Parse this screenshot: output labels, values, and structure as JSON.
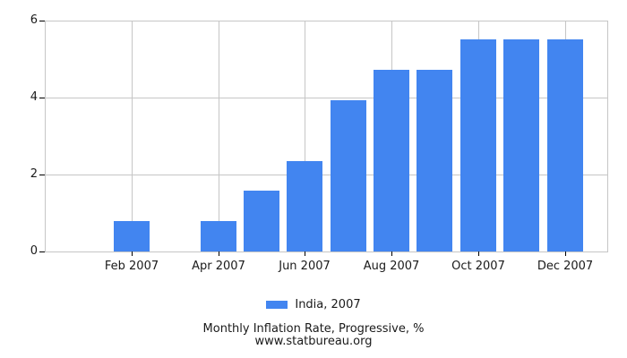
{
  "chart_data": {
    "type": "bar",
    "title": "Monthly Inflation Rate, Progressive, %",
    "subtitle": "www.statbureau.org",
    "legend": [
      {
        "label": "India, 2007",
        "color": "#4285f0"
      }
    ],
    "legend_position": "bottom",
    "categories": [
      "Jan 2007",
      "Feb 2007",
      "Mar 2007",
      "Apr 2007",
      "May 2007",
      "Jun 2007",
      "Jul 2007",
      "Aug 2007",
      "Sep 2007",
      "Oct 2007",
      "Nov 2007",
      "Dec 2007"
    ],
    "series": [
      {
        "name": "India, 2007",
        "values": [
          0,
          0.78,
          0,
          0.78,
          1.57,
          2.36,
          3.94,
          4.73,
          4.73,
          5.51,
          5.51,
          5.51
        ]
      }
    ],
    "x_tick_labels": [
      "Feb 2007",
      "Apr 2007",
      "Jun 2007",
      "Aug 2007",
      "Oct 2007",
      "Dec 2007"
    ],
    "y_ticks": [
      0,
      2,
      4,
      6
    ],
    "ylim": [
      0,
      6
    ],
    "grid": true,
    "colors": {
      "bar": "#4285f0",
      "grid": "#c6c6c6",
      "axis": "#c6c6c6",
      "tick_mark": "#000000",
      "text": "#1a1a1a"
    }
  }
}
